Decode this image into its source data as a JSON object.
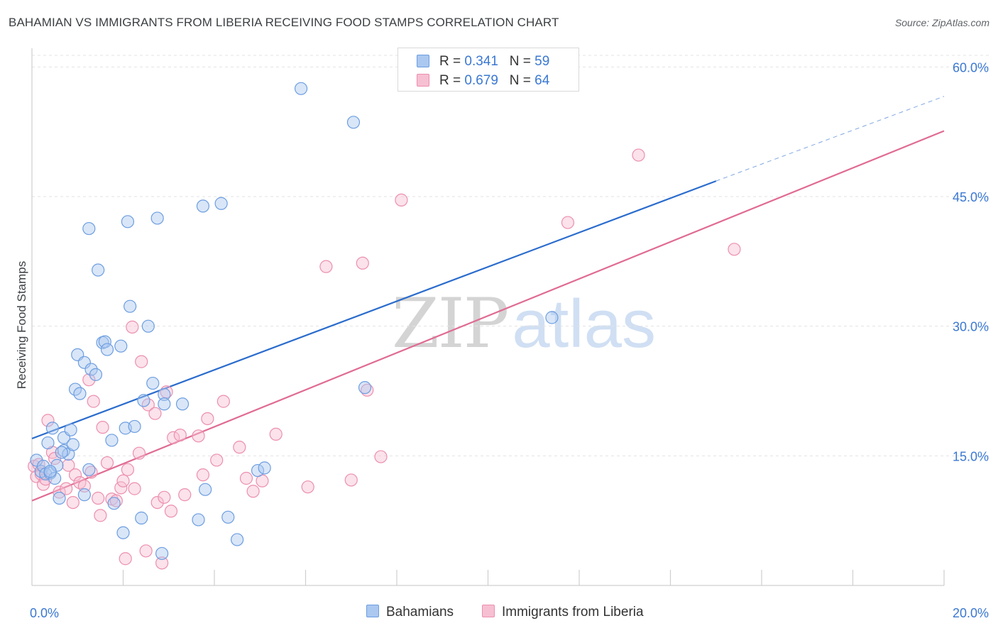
{
  "header": {
    "title": "BAHAMIAN VS IMMIGRANTS FROM LIBERIA RECEIVING FOOD STAMPS CORRELATION CHART",
    "source": "Source: ZipAtlas.com"
  },
  "legend": {
    "rows": [
      {
        "r_label": "R =",
        "r_value": "0.341",
        "n_label": "N =",
        "n_value": "59"
      },
      {
        "r_label": "R =",
        "r_value": "0.679",
        "n_label": "N =",
        "n_value": "64"
      }
    ]
  },
  "watermark": {
    "part1": "ZIP",
    "part2": "atlas"
  },
  "colors": {
    "bahamians_fill": "#aac8f0",
    "bahamians_stroke": "#6d9ee0",
    "bahamians_line": "#2a6ccd",
    "liberia_fill": "#f7bfd2",
    "liberia_stroke": "#ec8fae",
    "liberia_line": "#e06b92",
    "axis_text": "#3a78d2",
    "grid": "#e3e3e3"
  },
  "chart_data": {
    "type": "scatter",
    "title": "BAHAMIAN VS IMMIGRANTS FROM LIBERIA RECEIVING FOOD STAMPS CORRELATION CHART",
    "xlabel": "",
    "ylabel": "Receiving Food Stamps",
    "xlim": [
      0,
      20
    ],
    "ylim": [
      0,
      62
    ],
    "x_tick_labels": [
      {
        "value": 0,
        "label": "0.0%"
      },
      {
        "value": 20,
        "label": "20.0%"
      }
    ],
    "y_tick_labels": [
      {
        "value": 15,
        "label": "15.0%"
      },
      {
        "value": 30,
        "label": "30.0%"
      },
      {
        "value": 45,
        "label": "45.0%"
      },
      {
        "value": 60,
        "label": "60.0%"
      }
    ],
    "x_minor_ticks": [
      2,
      4,
      6,
      8,
      10,
      12,
      14,
      16,
      18,
      20
    ],
    "grid": true,
    "legend_position": "top-center",
    "series": [
      {
        "name": "Bahamians",
        "r": 0.341,
        "n": 59,
        "trend": {
          "x": [
            0,
            15
          ],
          "y": [
            17.0,
            46.8
          ],
          "dashed_to": {
            "x": 20,
            "y": 56.6
          }
        },
        "points": [
          [
            0.1,
            14.5
          ],
          [
            0.2,
            13.2
          ],
          [
            0.25,
            13.8
          ],
          [
            0.3,
            12.9
          ],
          [
            0.35,
            16.5
          ],
          [
            0.4,
            13.0
          ],
          [
            0.45,
            18.2
          ],
          [
            0.5,
            12.4
          ],
          [
            0.55,
            13.9
          ],
          [
            0.6,
            10.1
          ],
          [
            0.7,
            15.6
          ],
          [
            0.7,
            17.1
          ],
          [
            0.8,
            15.2
          ],
          [
            0.85,
            18.0
          ],
          [
            0.9,
            16.3
          ],
          [
            0.95,
            22.7
          ],
          [
            1.0,
            26.7
          ],
          [
            1.05,
            22.2
          ],
          [
            1.15,
            10.5
          ],
          [
            1.15,
            25.8
          ],
          [
            1.25,
            13.4
          ],
          [
            1.3,
            25.0
          ],
          [
            1.4,
            24.4
          ],
          [
            1.45,
            36.5
          ],
          [
            1.55,
            28.1
          ],
          [
            1.6,
            28.2
          ],
          [
            1.65,
            27.3
          ],
          [
            1.75,
            16.8
          ],
          [
            1.8,
            9.5
          ],
          [
            1.95,
            27.7
          ],
          [
            2.0,
            6.1
          ],
          [
            2.05,
            18.2
          ],
          [
            2.1,
            42.1
          ],
          [
            2.15,
            32.3
          ],
          [
            2.25,
            18.4
          ],
          [
            2.4,
            7.8
          ],
          [
            2.45,
            21.4
          ],
          [
            2.55,
            30.0
          ],
          [
            2.65,
            23.4
          ],
          [
            2.75,
            42.5
          ],
          [
            2.85,
            3.7
          ],
          [
            2.9,
            22.1
          ],
          [
            2.9,
            21.0
          ],
          [
            3.3,
            21.0
          ],
          [
            3.65,
            7.6
          ],
          [
            3.75,
            43.9
          ],
          [
            3.8,
            11.1
          ],
          [
            4.15,
            44.2
          ],
          [
            4.3,
            7.9
          ],
          [
            4.5,
            5.3
          ],
          [
            4.95,
            13.3
          ],
          [
            5.1,
            13.6
          ],
          [
            5.9,
            57.5
          ],
          [
            7.05,
            53.6
          ],
          [
            7.3,
            22.9
          ],
          [
            11.4,
            31.0
          ],
          [
            1.25,
            41.3
          ],
          [
            0.4,
            13.2
          ],
          [
            0.65,
            15.4
          ]
        ]
      },
      {
        "name": "Immigrants from Liberia",
        "r": 0.679,
        "n": 64,
        "trend": {
          "x": [
            0,
            20
          ],
          "y": [
            9.8,
            52.6
          ]
        },
        "points": [
          [
            0.05,
            13.8
          ],
          [
            0.1,
            12.6
          ],
          [
            0.15,
            14.0
          ],
          [
            0.2,
            12.9
          ],
          [
            0.25,
            11.7
          ],
          [
            0.3,
            12.3
          ],
          [
            0.35,
            19.1
          ],
          [
            0.45,
            15.4
          ],
          [
            0.5,
            14.7
          ],
          [
            0.6,
            10.8
          ],
          [
            0.75,
            11.2
          ],
          [
            0.8,
            13.9
          ],
          [
            0.9,
            9.6
          ],
          [
            0.95,
            12.8
          ],
          [
            1.05,
            11.9
          ],
          [
            1.15,
            11.5
          ],
          [
            1.25,
            23.8
          ],
          [
            1.3,
            13.1
          ],
          [
            1.35,
            21.3
          ],
          [
            1.45,
            10.1
          ],
          [
            1.5,
            8.1
          ],
          [
            1.55,
            18.3
          ],
          [
            1.65,
            14.2
          ],
          [
            1.75,
            10.0
          ],
          [
            1.85,
            9.8
          ],
          [
            1.95,
            11.3
          ],
          [
            2.0,
            12.1
          ],
          [
            2.05,
            3.1
          ],
          [
            2.1,
            13.4
          ],
          [
            2.2,
            29.9
          ],
          [
            2.25,
            11.2
          ],
          [
            2.35,
            15.3
          ],
          [
            2.4,
            25.9
          ],
          [
            2.5,
            4.0
          ],
          [
            2.55,
            20.9
          ],
          [
            2.7,
            19.9
          ],
          [
            2.75,
            9.6
          ],
          [
            2.85,
            2.6
          ],
          [
            2.9,
            10.2
          ],
          [
            2.95,
            22.4
          ],
          [
            3.05,
            8.6
          ],
          [
            3.1,
            17.1
          ],
          [
            3.25,
            17.4
          ],
          [
            3.35,
            10.5
          ],
          [
            3.65,
            17.3
          ],
          [
            3.75,
            12.8
          ],
          [
            3.85,
            19.3
          ],
          [
            4.05,
            14.5
          ],
          [
            4.2,
            21.3
          ],
          [
            4.55,
            16.0
          ],
          [
            4.7,
            12.4
          ],
          [
            4.85,
            10.9
          ],
          [
            5.05,
            12.1
          ],
          [
            5.35,
            17.5
          ],
          [
            6.05,
            11.4
          ],
          [
            6.45,
            36.9
          ],
          [
            7.0,
            12.2
          ],
          [
            7.25,
            37.3
          ],
          [
            7.35,
            22.6
          ],
          [
            7.65,
            14.9
          ],
          [
            8.1,
            44.6
          ],
          [
            11.75,
            42.0
          ],
          [
            13.3,
            49.8
          ],
          [
            15.4,
            38.9
          ]
        ]
      }
    ]
  },
  "bottom_legend": [
    {
      "label": "Bahamians"
    },
    {
      "label": "Immigrants from Liberia"
    }
  ]
}
